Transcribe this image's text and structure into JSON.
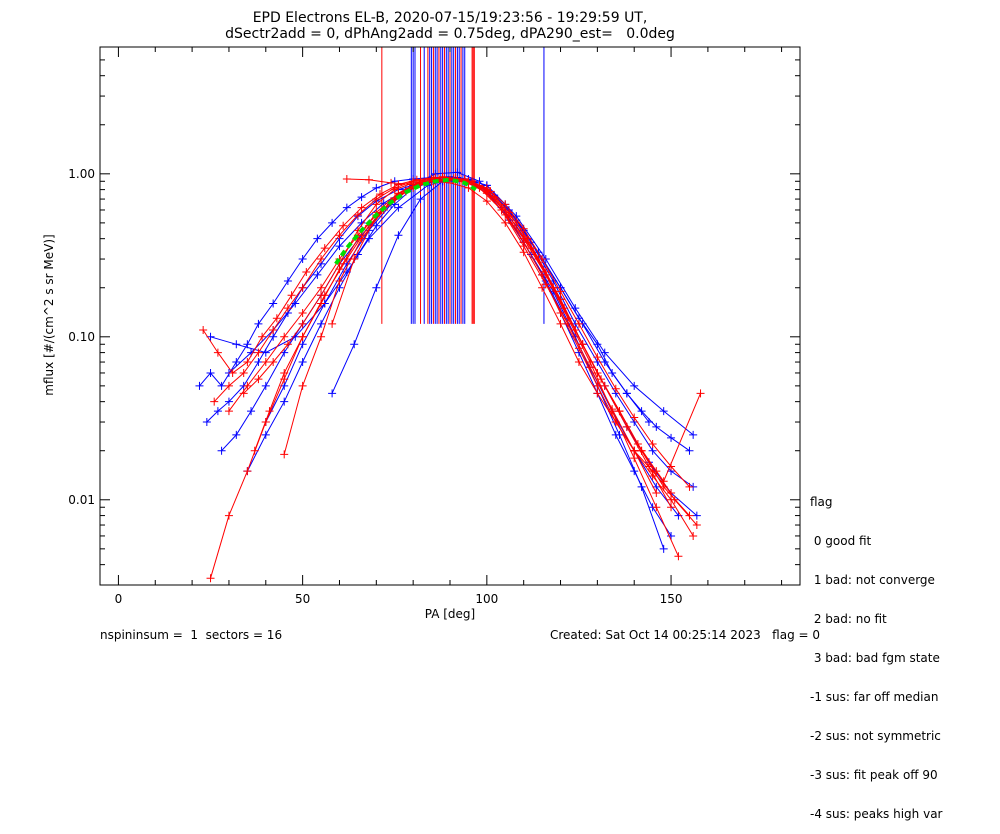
{
  "chart_data": {
    "type": "scatter",
    "title": "EPD Electrons EL-B, 2020-07-15/19:23:56 - 19:29:59 UT,",
    "subtitle": "dSectr2add = 0, dPhAng2add = 0.75deg, dPA290_est=   0.0deg",
    "xlabel": "PA [deg]",
    "ylabel": "mflux [#/(cm^2 s sr MeV)]",
    "xlim": [
      -5,
      185
    ],
    "ylim": [
      0.003,
      6
    ],
    "yscale": "log",
    "x_ticks": [
      "0",
      "50",
      "100",
      "150"
    ],
    "y_ticks": [
      "0.01",
      "0.10",
      "1.00"
    ],
    "grid": false,
    "colors": {
      "blue": "#0000ff",
      "red": "#ff0000",
      "fit": "#00dd00"
    },
    "series": [
      {
        "color": "blue",
        "x": [
          22,
          25,
          28,
          32,
          35,
          38,
          42,
          46,
          50,
          54,
          58,
          62,
          66,
          70,
          75,
          80,
          85,
          90,
          95,
          100,
          105,
          110,
          115,
          120,
          125,
          130,
          134,
          138,
          142,
          146,
          150,
          155
        ],
        "y": [
          0.05,
          0.06,
          0.05,
          0.07,
          0.09,
          0.12,
          0.16,
          0.22,
          0.3,
          0.4,
          0.5,
          0.62,
          0.72,
          0.82,
          0.9,
          0.93,
          0.95,
          0.95,
          0.92,
          0.85,
          0.65,
          0.45,
          0.3,
          0.2,
          0.13,
          0.09,
          0.06,
          0.045,
          0.035,
          0.028,
          0.024,
          0.02
        ]
      },
      {
        "color": "blue",
        "x": [
          24,
          27,
          30,
          34,
          38,
          42,
          46,
          50,
          55,
          60,
          65,
          70,
          76,
          82,
          88,
          94,
          100,
          106,
          112,
          118,
          124,
          130,
          135,
          140,
          145,
          150,
          156
        ],
        "y": [
          0.03,
          0.035,
          0.04,
          0.05,
          0.07,
          0.1,
          0.14,
          0.2,
          0.28,
          0.4,
          0.55,
          0.68,
          0.8,
          0.88,
          0.9,
          0.9,
          0.82,
          0.6,
          0.38,
          0.22,
          0.12,
          0.07,
          0.045,
          0.03,
          0.02,
          0.015,
          0.012
        ]
      },
      {
        "color": "blue",
        "x": [
          28,
          32,
          36,
          40,
          45,
          50,
          55,
          60,
          66,
          72,
          78,
          84,
          90,
          96,
          102,
          108,
          114,
          120,
          126,
          132,
          138,
          144,
          150,
          157
        ],
        "y": [
          0.02,
          0.025,
          0.035,
          0.05,
          0.08,
          0.12,
          0.18,
          0.28,
          0.42,
          0.6,
          0.78,
          0.88,
          0.92,
          0.88,
          0.7,
          0.48,
          0.3,
          0.17,
          0.09,
          0.05,
          0.028,
          0.017,
          0.011,
          0.008
        ]
      },
      {
        "color": "blue",
        "x": [
          35,
          40,
          45,
          50,
          55,
          60,
          65,
          70,
          75,
          80,
          85,
          90,
          95,
          100,
          105,
          110,
          115,
          120,
          125,
          130,
          135,
          140,
          145,
          150
        ],
        "y": [
          0.015,
          0.025,
          0.04,
          0.07,
          0.12,
          0.2,
          0.32,
          0.48,
          0.65,
          0.82,
          0.92,
          0.96,
          0.93,
          0.8,
          0.58,
          0.38,
          0.24,
          0.14,
          0.08,
          0.045,
          0.025,
          0.015,
          0.009,
          0.006
        ]
      },
      {
        "color": "blue",
        "x": [
          40,
          45,
          50,
          56,
          62,
          68,
          74,
          80,
          86,
          92,
          98,
          104,
          110,
          116,
          122,
          128,
          134,
          140,
          146,
          152
        ],
        "y": [
          0.03,
          0.05,
          0.09,
          0.16,
          0.28,
          0.45,
          0.65,
          0.85,
          1.0,
          1.02,
          0.9,
          0.62,
          0.38,
          0.22,
          0.12,
          0.065,
          0.035,
          0.02,
          0.012,
          0.008
        ]
      },
      {
        "color": "blue",
        "x": [
          30,
          36,
          42,
          48,
          54,
          60,
          66,
          72,
          78,
          84,
          90,
          96,
          102,
          108,
          114,
          120,
          126,
          132,
          138,
          144
        ],
        "y": [
          0.06,
          0.08,
          0.11,
          0.16,
          0.24,
          0.36,
          0.5,
          0.66,
          0.8,
          0.9,
          0.94,
          0.9,
          0.74,
          0.52,
          0.33,
          0.2,
          0.12,
          0.07,
          0.045,
          0.03
        ]
      },
      {
        "color": "blue",
        "x": [
          58,
          64,
          70,
          76,
          82,
          88,
          94,
          100,
          106,
          112,
          118,
          124,
          130,
          136,
          142,
          148
        ],
        "y": [
          0.045,
          0.09,
          0.2,
          0.42,
          0.7,
          0.9,
          0.92,
          0.78,
          0.52,
          0.32,
          0.19,
          0.1,
          0.05,
          0.025,
          0.012,
          0.005
        ]
      },
      {
        "color": "blue",
        "x": [
          25,
          32,
          40,
          48,
          56,
          62,
          68,
          76,
          84,
          92,
          100,
          108,
          116,
          124,
          132,
          140,
          148,
          156
        ],
        "y": [
          0.1,
          0.09,
          0.08,
          0.1,
          0.16,
          0.25,
          0.4,
          0.62,
          0.85,
          0.95,
          0.85,
          0.55,
          0.3,
          0.15,
          0.08,
          0.05,
          0.035,
          0.025
        ]
      },
      {
        "color": "red",
        "x": [
          23,
          27,
          31,
          35,
          39,
          43,
          47,
          51,
          56,
          61,
          66,
          71,
          76,
          81,
          86,
          91,
          96,
          101,
          106,
          111,
          116,
          121,
          126,
          131,
          136,
          141,
          146,
          151,
          157
        ],
        "y": [
          0.11,
          0.08,
          0.06,
          0.07,
          0.1,
          0.13,
          0.18,
          0.25,
          0.35,
          0.48,
          0.62,
          0.75,
          0.86,
          0.92,
          0.95,
          0.94,
          0.9,
          0.78,
          0.58,
          0.4,
          0.25,
          0.15,
          0.09,
          0.055,
          0.035,
          0.022,
          0.015,
          0.01,
          0.007
        ]
      },
      {
        "color": "red",
        "x": [
          26,
          30,
          34,
          38,
          42,
          46,
          50,
          55,
          60,
          65,
          70,
          75,
          80,
          85,
          90,
          95,
          100,
          105,
          110,
          115,
          120,
          125,
          130,
          135,
          140,
          145,
          150,
          156
        ],
        "y": [
          0.04,
          0.05,
          0.06,
          0.08,
          0.11,
          0.15,
          0.2,
          0.3,
          0.42,
          0.56,
          0.7,
          0.82,
          0.9,
          0.93,
          0.92,
          0.88,
          0.76,
          0.56,
          0.38,
          0.24,
          0.14,
          0.085,
          0.05,
          0.03,
          0.02,
          0.014,
          0.01,
          0.006
        ]
      },
      {
        "color": "red",
        "x": [
          25,
          30,
          35,
          40,
          45,
          50,
          56,
          62,
          68,
          74,
          80,
          86,
          92,
          98,
          104,
          110,
          116,
          122,
          128,
          134,
          140,
          146,
          152
        ],
        "y": [
          0.0033,
          0.008,
          0.015,
          0.03,
          0.055,
          0.1,
          0.18,
          0.3,
          0.48,
          0.68,
          0.84,
          0.92,
          0.92,
          0.82,
          0.6,
          0.4,
          0.24,
          0.13,
          0.07,
          0.035,
          0.018,
          0.009,
          0.0045
        ]
      },
      {
        "color": "red",
        "x": [
          34,
          38,
          42,
          46,
          50,
          55,
          60,
          65,
          70,
          75,
          80,
          85,
          90,
          95,
          100,
          105,
          110,
          115,
          120,
          125,
          130,
          135,
          140,
          145,
          150
        ],
        "y": [
          0.045,
          0.055,
          0.07,
          0.09,
          0.12,
          0.18,
          0.28,
          0.45,
          0.65,
          0.8,
          0.88,
          0.9,
          0.88,
          0.82,
          0.68,
          0.5,
          0.33,
          0.2,
          0.12,
          0.07,
          0.045,
          0.03,
          0.02,
          0.015,
          0.011
        ]
      },
      {
        "color": "red",
        "x": [
          37,
          41,
          45,
          50,
          55,
          60,
          65,
          70,
          76,
          82,
          88,
          94,
          100,
          106,
          112,
          118,
          124,
          130,
          136,
          142,
          148,
          158
        ],
        "y": [
          0.02,
          0.035,
          0.06,
          0.1,
          0.16,
          0.26,
          0.4,
          0.58,
          0.76,
          0.9,
          0.96,
          0.92,
          0.78,
          0.55,
          0.35,
          0.2,
          0.11,
          0.06,
          0.035,
          0.02,
          0.013,
          0.045
        ]
      },
      {
        "color": "red",
        "x": [
          45,
          50,
          55,
          60,
          66,
          72,
          78,
          84,
          90,
          96,
          102,
          108,
          114,
          120,
          126,
          132,
          138,
          144,
          150
        ],
        "y": [
          0.019,
          0.05,
          0.1,
          0.22,
          0.4,
          0.6,
          0.78,
          0.9,
          0.94,
          0.9,
          0.72,
          0.5,
          0.3,
          0.17,
          0.09,
          0.05,
          0.028,
          0.016,
          0.009
        ]
      },
      {
        "color": "red",
        "x": [
          58,
          64,
          70,
          76,
          82,
          88,
          94,
          100,
          106,
          112,
          118,
          124,
          130,
          136,
          142,
          148,
          155
        ],
        "y": [
          0.12,
          0.3,
          0.55,
          0.75,
          0.88,
          0.95,
          0.93,
          0.8,
          0.55,
          0.35,
          0.2,
          0.11,
          0.06,
          0.035,
          0.02,
          0.012,
          0.008
        ]
      },
      {
        "color": "red",
        "x": [
          30,
          35,
          40,
          45,
          50,
          55,
          60,
          65,
          70,
          75,
          80,
          85,
          90,
          95,
          100,
          105,
          110,
          115,
          120,
          125,
          130,
          135,
          140,
          145,
          150,
          155
        ],
        "y": [
          0.035,
          0.05,
          0.07,
          0.1,
          0.14,
          0.2,
          0.3,
          0.42,
          0.56,
          0.7,
          0.82,
          0.9,
          0.92,
          0.9,
          0.82,
          0.65,
          0.46,
          0.3,
          0.19,
          0.12,
          0.075,
          0.048,
          0.032,
          0.022,
          0.016,
          0.012
        ]
      },
      {
        "color": "red",
        "x": [
          62,
          68,
          74,
          80,
          86,
          92,
          98,
          104,
          110,
          116,
          122,
          128,
          134,
          140,
          146
        ],
        "y": [
          0.93,
          0.92,
          0.88,
          0.86,
          0.9,
          0.92,
          0.85,
          0.6,
          0.36,
          0.21,
          0.12,
          0.065,
          0.036,
          0.02,
          0.011
        ]
      }
    ],
    "fit": {
      "color": "fit",
      "x": [
        59,
        62,
        66,
        70,
        74,
        78,
        82,
        86,
        90,
        94,
        97
      ],
      "y": [
        0.28,
        0.35,
        0.45,
        0.56,
        0.67,
        0.77,
        0.85,
        0.9,
        0.92,
        0.88,
        0.8
      ]
    },
    "vlines": [
      {
        "color": "red",
        "x": 71.5,
        "y_bottom": 0.12,
        "y_top": 6
      },
      {
        "color": "blue",
        "x": 79.5,
        "y_bottom": 0.12,
        "y_top": 6
      },
      {
        "color": "blue",
        "x": 80.0,
        "y_bottom": 0.12,
        "y_top": 6
      },
      {
        "color": "blue",
        "x": 80.5,
        "y_bottom": 0.12,
        "y_top": 6
      },
      {
        "color": "red",
        "x": 82.0,
        "y_bottom": 0.12,
        "y_top": 6
      },
      {
        "color": "blue",
        "x": 83.0,
        "y_bottom": 0.12,
        "y_top": 6
      },
      {
        "color": "red",
        "x": 84.0,
        "y_bottom": 0.12,
        "y_top": 6
      },
      {
        "color": "blue",
        "x": 84.5,
        "y_bottom": 0.12,
        "y_top": 6
      },
      {
        "color": "blue",
        "x": 85.0,
        "y_bottom": 0.12,
        "y_top": 6
      },
      {
        "color": "red",
        "x": 85.5,
        "y_bottom": 0.12,
        "y_top": 6
      },
      {
        "color": "blue",
        "x": 86.0,
        "y_bottom": 0.12,
        "y_top": 6
      },
      {
        "color": "blue",
        "x": 86.5,
        "y_bottom": 0.12,
        "y_top": 6
      },
      {
        "color": "red",
        "x": 87.0,
        "y_bottom": 0.12,
        "y_top": 6
      },
      {
        "color": "blue",
        "x": 87.5,
        "y_bottom": 0.12,
        "y_top": 6
      },
      {
        "color": "blue",
        "x": 88.0,
        "y_bottom": 0.12,
        "y_top": 6
      },
      {
        "color": "red",
        "x": 88.5,
        "y_bottom": 0.12,
        "y_top": 6
      },
      {
        "color": "blue",
        "x": 89.0,
        "y_bottom": 0.12,
        "y_top": 6
      },
      {
        "color": "blue",
        "x": 89.5,
        "y_bottom": 0.12,
        "y_top": 6
      },
      {
        "color": "red",
        "x": 90.0,
        "y_bottom": 0.12,
        "y_top": 6
      },
      {
        "color": "blue",
        "x": 90.5,
        "y_bottom": 0.12,
        "y_top": 6
      },
      {
        "color": "blue",
        "x": 91.0,
        "y_bottom": 0.12,
        "y_top": 6
      },
      {
        "color": "red",
        "x": 91.5,
        "y_bottom": 0.12,
        "y_top": 6
      },
      {
        "color": "blue",
        "x": 92.0,
        "y_bottom": 0.12,
        "y_top": 6
      },
      {
        "color": "blue",
        "x": 92.5,
        "y_bottom": 0.12,
        "y_top": 6
      },
      {
        "color": "red",
        "x": 93.0,
        "y_bottom": 0.12,
        "y_top": 6
      },
      {
        "color": "blue",
        "x": 93.5,
        "y_bottom": 0.12,
        "y_top": 6
      },
      {
        "color": "blue",
        "x": 94.0,
        "y_bottom": 0.12,
        "y_top": 6
      },
      {
        "color": "red",
        "x": 96.0,
        "y_bottom": 0.12,
        "y_top": 6
      },
      {
        "color": "red",
        "x": 96.3,
        "y_bottom": 0.12,
        "y_top": 6
      },
      {
        "color": "red",
        "x": 96.6,
        "y_bottom": 0.12,
        "y_top": 6
      },
      {
        "color": "blue",
        "x": 115.5,
        "y_bottom": 0.12,
        "y_top": 6
      }
    ]
  },
  "legend": {
    "lines": [
      "flag",
      " 0 good fit",
      " 1 bad: not converge",
      " 2 bad: no fit",
      " 3 bad: bad fgm state",
      "-1 sus: far off median",
      "-2 sus: not symmetric",
      "-3 sus: fit peak off 90",
      "-4 sus: peaks high var"
    ]
  },
  "footer": {
    "left": "nspininsum =  1  sectors = 16",
    "right": "Created: Sat Oct 14 00:25:14 2023   flag = 0"
  }
}
